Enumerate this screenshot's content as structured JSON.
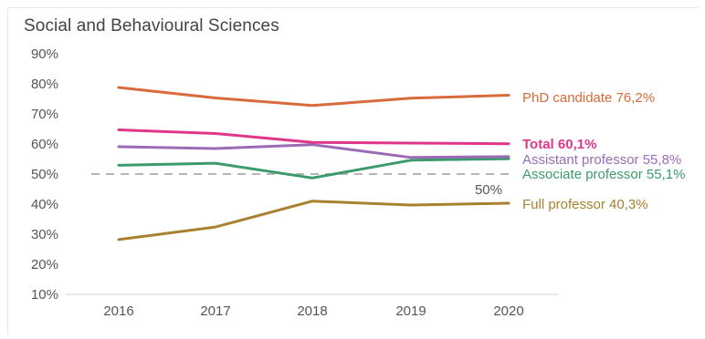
{
  "chart_data": {
    "type": "line",
    "title": "Social and Behavioural Sciences",
    "xlabel": "",
    "ylabel": "",
    "x": [
      "2016",
      "2017",
      "2018",
      "2019",
      "2020"
    ],
    "y_ticks": [
      "10%",
      "20%",
      "30%",
      "40%",
      "50%",
      "60%",
      "70%",
      "80%",
      "90%"
    ],
    "ylim": [
      10,
      90
    ],
    "grid": false,
    "series": [
      {
        "name": "PhD candidate",
        "values": [
          78.8,
          75.3,
          72.8,
          75.2,
          76.2
        ],
        "label": "PhD candidate 76,2%",
        "color": "#d96a3b",
        "bold": false
      },
      {
        "name": "Total",
        "values": [
          64.7,
          63.5,
          60.5,
          60.3,
          60.1
        ],
        "label": "Total 60,1%",
        "color": "#e0368a",
        "bold": true
      },
      {
        "name": "Assistant professor",
        "values": [
          59.1,
          58.5,
          59.8,
          55.5,
          55.8
        ],
        "label": "Assistant professor 55,8%",
        "color": "#9b6bb5",
        "bold": false
      },
      {
        "name": "Associate professor",
        "values": [
          52.9,
          53.6,
          48.7,
          54.6,
          55.1
        ],
        "label": "Associate professor 55,1%",
        "color": "#3b9b6b",
        "bold": false
      },
      {
        "name": "Full professor",
        "values": [
          28.2,
          32.4,
          41.0,
          39.7,
          40.3
        ],
        "label": "Full professor 40,3%",
        "color": "#a98030",
        "bold": false
      }
    ],
    "reference_line": {
      "value": 50,
      "label": "50%",
      "color": "#b5b5b5",
      "style": "dashed"
    }
  }
}
